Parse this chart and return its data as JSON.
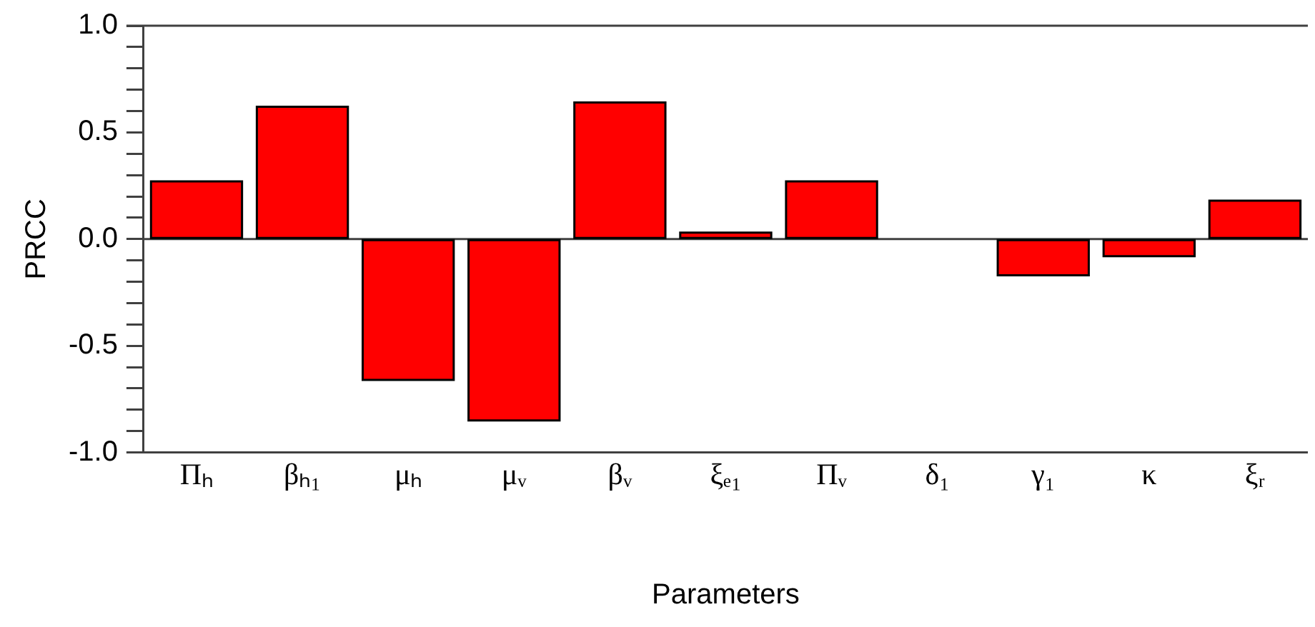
{
  "chart_data": {
    "type": "bar",
    "xlabel": "Parameters",
    "ylabel": "PRCC",
    "categories": [
      "Πₕ",
      "βₕ₁",
      "μₕ",
      "μᵥ",
      "βᵥ",
      "ξₑ₁",
      "Πᵥ",
      "δ₁",
      "γ₁",
      "κ",
      "ξᵣ"
    ],
    "values": [
      0.27,
      0.62,
      -0.66,
      -0.85,
      0.64,
      0.03,
      0.27,
      0,
      -0.17,
      -0.08,
      0.18
    ],
    "color": "#ff0000",
    "ylim": [
      -1,
      1
    ],
    "yticks": [
      {
        "value": -1,
        "label": "-1.0"
      },
      {
        "value": -0.9,
        "label": null
      },
      {
        "value": -0.8,
        "label": null
      },
      {
        "value": -0.7,
        "label": null
      },
      {
        "value": -0.6,
        "label": null
      },
      {
        "value": -0.5,
        "label": "-0.5"
      },
      {
        "value": -0.4,
        "label": null
      },
      {
        "value": -0.3,
        "label": null
      },
      {
        "value": -0.2,
        "label": null
      },
      {
        "value": -0.1,
        "label": null
      },
      {
        "value": 0,
        "label": "0.0"
      },
      {
        "value": 0.1,
        "label": null
      },
      {
        "value": 0.2,
        "label": null
      },
      {
        "value": 0.3,
        "label": null
      },
      {
        "value": 0.4,
        "label": null
      },
      {
        "value": 0.5,
        "label": "0.5"
      },
      {
        "value": 0.6,
        "label": null
      },
      {
        "value": 0.7,
        "label": null
      },
      {
        "value": 0.8,
        "label": null
      },
      {
        "value": 0.9,
        "label": null
      },
      {
        "value": 1,
        "label": "1.0"
      }
    ],
    "ref_lines": [
      {
        "axis": "y",
        "value": 0,
        "color": "#404040"
      }
    ],
    "grid": false,
    "legend": false
  }
}
